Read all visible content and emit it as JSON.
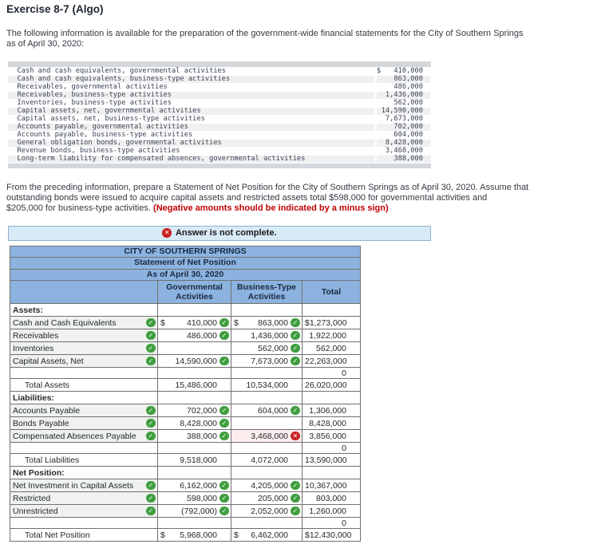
{
  "colors": {
    "header_blue": "#8cb3df",
    "banner_bg": "#d9eaf7",
    "banner_border": "#8db2cf",
    "check_green": "#3f9e3f",
    "error_red": "#c92121",
    "note_red": "#c00000",
    "given_band": "#d4d8dd",
    "given_stripe": "#f0f0f0",
    "select_cell_bg": "#eff2ee",
    "wrong_cell_bg": "#fdeeee"
  },
  "page": {
    "title": "Exercise 8-7 (Algo)",
    "intro_lines": [
      "The following information is available for the preparation of the government-wide financial statements for the City of Southern Springs",
      "as of April 30, 2020:"
    ],
    "instructions_lines": [
      "From the preceding information, prepare a Statement of Net Position for the City of Southern Springs as of April 30, 2020. Assume that",
      "outstanding bonds were issued to acquire capital assets and restricted assets total $598,000 for governmental activities and",
      "$205,000 for business-type activities. "
    ],
    "instructions_note": "(Negative amounts should be indicated by a minus sign)"
  },
  "given_data": {
    "rows": [
      {
        "label": "Cash and cash equivalents, governmental activities",
        "dollar": "$",
        "amount": "410,000"
      },
      {
        "label": "Cash and cash equivalents, business-type activities",
        "dollar": "",
        "amount": "863,000"
      },
      {
        "label": "Receivables, governmental activities",
        "dollar": "",
        "amount": "486,000"
      },
      {
        "label": "Receivables, business-type activities",
        "dollar": "",
        "amount": "1,436,000"
      },
      {
        "label": "Inventories, business-type activities",
        "dollar": "",
        "amount": "562,000"
      },
      {
        "label": "Capital assets, net, governmental activities",
        "dollar": "",
        "amount": "14,590,000"
      },
      {
        "label": "Capital assets, net, business-type activities",
        "dollar": "",
        "amount": "7,673,000"
      },
      {
        "label": "Accounts payable, governmental activities",
        "dollar": "",
        "amount": "702,000"
      },
      {
        "label": "Accounts payable, business-type activities",
        "dollar": "",
        "amount": "604,000"
      },
      {
        "label": "General obligation bonds, governmental activities",
        "dollar": "",
        "amount": "8,428,000"
      },
      {
        "label": "Revenue bonds, business-type activities",
        "dollar": "",
        "amount": "3,468,000"
      },
      {
        "label": "Long-term liability for compensated absences, governmental activities",
        "dollar": "",
        "amount": "388,000"
      }
    ]
  },
  "status_banner": {
    "icon": "error-icon",
    "text": "Answer is not complete."
  },
  "statement": {
    "title_lines": [
      "CITY OF SOUTHERN SPRINGS",
      "Statement of Net Position",
      "As of April 30, 2020"
    ],
    "column_headers": {
      "governmental": "Governmental Activities",
      "business": "Business-Type Activities",
      "total": "Total"
    },
    "rows": [
      {
        "type": "section",
        "label": "Assets:"
      },
      {
        "type": "item",
        "label": "Cash and Cash Equivalents",
        "label_icon": "check",
        "gov": {
          "dollar": "$",
          "value": "410,000",
          "icon": "check"
        },
        "bus": {
          "dollar": "$",
          "value": "863,000",
          "icon": "check"
        },
        "total": {
          "dollar": "$",
          "value": "1,273,000"
        }
      },
      {
        "type": "item",
        "label": "Receivables",
        "label_icon": "check",
        "gov": {
          "dollar": "",
          "value": "486,000",
          "icon": "check"
        },
        "bus": {
          "dollar": "",
          "value": "1,436,000",
          "icon": "check"
        },
        "total": {
          "dollar": "",
          "value": "1,922,000"
        }
      },
      {
        "type": "item",
        "label": "Inventories",
        "label_icon": "check",
        "gov": null,
        "bus": {
          "dollar": "",
          "value": "562,000",
          "icon": "check"
        },
        "total": {
          "dollar": "",
          "value": "562,000"
        }
      },
      {
        "type": "item",
        "label": "Capital Assets, Net",
        "label_icon": "check",
        "gov": {
          "dollar": "",
          "value": "14,590,000",
          "icon": "check"
        },
        "bus": {
          "dollar": "",
          "value": "7,673,000",
          "icon": "check"
        },
        "total": {
          "dollar": "",
          "value": "22,263,000"
        }
      },
      {
        "type": "blank",
        "total": {
          "dollar": "",
          "value": "0"
        }
      },
      {
        "type": "total",
        "label": "Total Assets",
        "gov": {
          "dollar": "",
          "value": "15,486,000"
        },
        "bus": {
          "dollar": "",
          "value": "10,534,000"
        },
        "total": {
          "dollar": "",
          "value": "26,020,000"
        }
      },
      {
        "type": "section",
        "label": "Liabilities:"
      },
      {
        "type": "item",
        "label": "Accounts Payable",
        "label_icon": "check",
        "gov": {
          "dollar": "",
          "value": "702,000",
          "icon": "check"
        },
        "bus": {
          "dollar": "",
          "value": "604,000",
          "icon": "check"
        },
        "total": {
          "dollar": "",
          "value": "1,306,000"
        }
      },
      {
        "type": "item",
        "label": "Bonds Payable",
        "label_icon": "check",
        "gov": {
          "dollar": "",
          "value": "8,428,000",
          "icon": "check"
        },
        "bus": null,
        "total": {
          "dollar": "",
          "value": "8,428,000"
        }
      },
      {
        "type": "item",
        "label": "Compensated Absences Payable",
        "label_icon": "check",
        "gov": {
          "dollar": "",
          "value": "388,000",
          "icon": "check"
        },
        "bus": {
          "dollar": "",
          "value": "3,468,000",
          "icon": "cross",
          "state": "incorrect"
        },
        "total": {
          "dollar": "",
          "value": "3,856,000"
        }
      },
      {
        "type": "blank",
        "total": {
          "dollar": "",
          "value": "0"
        }
      },
      {
        "type": "total",
        "label": "Total Liabilities",
        "gov": {
          "dollar": "",
          "value": "9,518,000"
        },
        "bus": {
          "dollar": "",
          "value": "4,072,000"
        },
        "total": {
          "dollar": "",
          "value": "13,590,000"
        }
      },
      {
        "type": "section",
        "label": "Net Position:"
      },
      {
        "type": "item",
        "label": "Net Investment in Capital Assets",
        "label_icon": "check",
        "gov": {
          "dollar": "",
          "value": "6,162,000",
          "icon": "check"
        },
        "bus": {
          "dollar": "",
          "value": "4,205,000",
          "icon": "check"
        },
        "total": {
          "dollar": "",
          "value": "10,367,000"
        }
      },
      {
        "type": "item",
        "label": "Restricted",
        "label_icon": "check",
        "gov": {
          "dollar": "",
          "value": "598,000",
          "icon": "check"
        },
        "bus": {
          "dollar": "",
          "value": "205,000",
          "icon": "check"
        },
        "total": {
          "dollar": "",
          "value": "803,000"
        }
      },
      {
        "type": "item",
        "label": "Unrestricted",
        "label_icon": "check",
        "gov": {
          "dollar": "",
          "value": "(792,000)",
          "icon": "check"
        },
        "bus": {
          "dollar": "",
          "value": "2,052,000",
          "icon": "check"
        },
        "total": {
          "dollar": "",
          "value": "1,260,000"
        }
      },
      {
        "type": "blank",
        "total": {
          "dollar": "",
          "value": "0"
        }
      },
      {
        "type": "total",
        "label": "Total Net Position",
        "gov": {
          "dollar": "$",
          "value": "5,968,000"
        },
        "bus": {
          "dollar": "$",
          "value": "6,462,000"
        },
        "total": {
          "dollar": "$",
          "value": "12,430,000"
        }
      }
    ]
  }
}
